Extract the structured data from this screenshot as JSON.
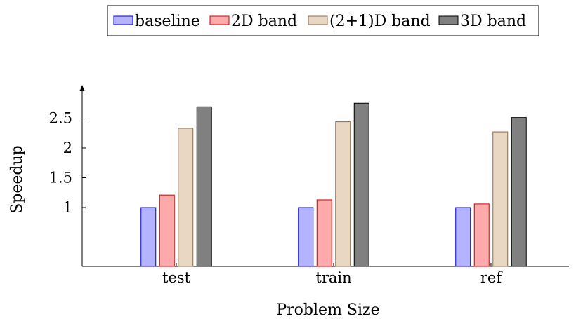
{
  "chart_data": {
    "type": "bar",
    "categories": [
      "test",
      "train",
      "ref"
    ],
    "series": [
      {
        "name": "baseline",
        "values": [
          1.0,
          1.0,
          1.0
        ],
        "fill": "#b3b3ff",
        "stroke": "#0000cc"
      },
      {
        "name": "2D band",
        "values": [
          1.21,
          1.13,
          1.06
        ],
        "fill": "#ffaaaa",
        "stroke": "#cc0000"
      },
      {
        "name": "(2+1)D band",
        "values": [
          2.33,
          2.44,
          2.27
        ],
        "fill": "#e8d8c3",
        "stroke": "#8b6b4b"
      },
      {
        "name": "3D band",
        "values": [
          2.69,
          2.75,
          2.51
        ],
        "fill": "#808080",
        "stroke": "#000000"
      }
    ],
    "xlabel": "Problem Size",
    "ylabel": "Speedup",
    "yticks": [
      1,
      1.5,
      2,
      2.5
    ],
    "ytick_labels": [
      "1",
      "1.5",
      "2",
      "2.5"
    ],
    "ylim": [
      0,
      3.0
    ],
    "legend_position": "top-center",
    "grid": false
  }
}
